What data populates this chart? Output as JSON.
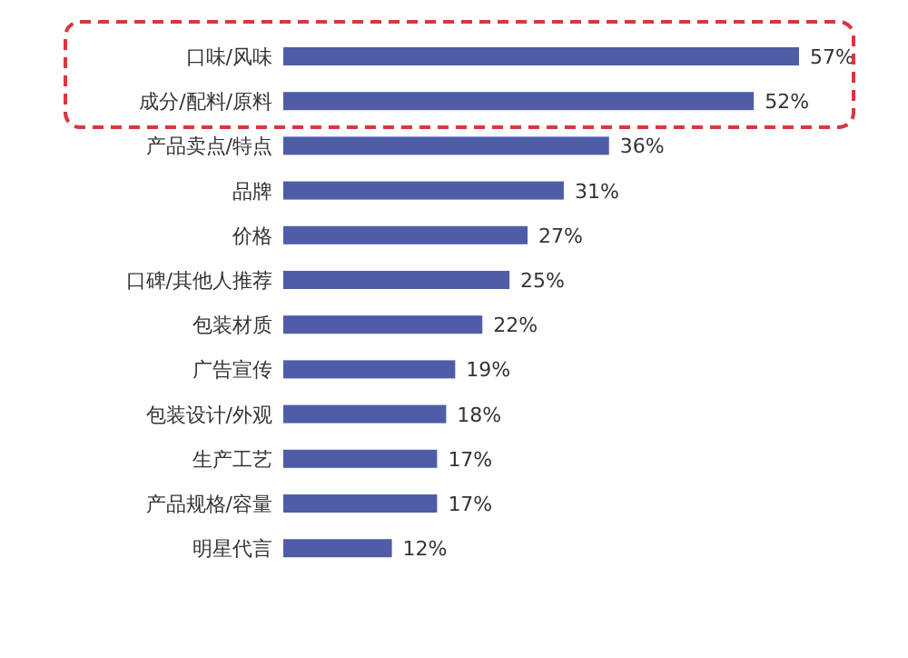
{
  "chart_data": {
    "type": "bar",
    "orientation": "horizontal",
    "color": "#4f5da8",
    "categories": [
      "口味/风味",
      "成分/配料/原料",
      "产品卖点/特点",
      "品牌",
      "价格",
      "口碑/其他人推荐",
      "包装材质",
      "广告宣传",
      "包装设计/外观",
      "生产工艺",
      "产品规格/容量",
      "明星代言"
    ],
    "values": [
      57,
      52,
      36,
      31,
      27,
      25,
      22,
      19,
      18,
      17,
      17,
      12
    ],
    "value_labels": [
      "57%",
      "52%",
      "36%",
      "31%",
      "27%",
      "25%",
      "22%",
      "19%",
      "18%",
      "17%",
      "17%",
      "12%"
    ]
  }
}
